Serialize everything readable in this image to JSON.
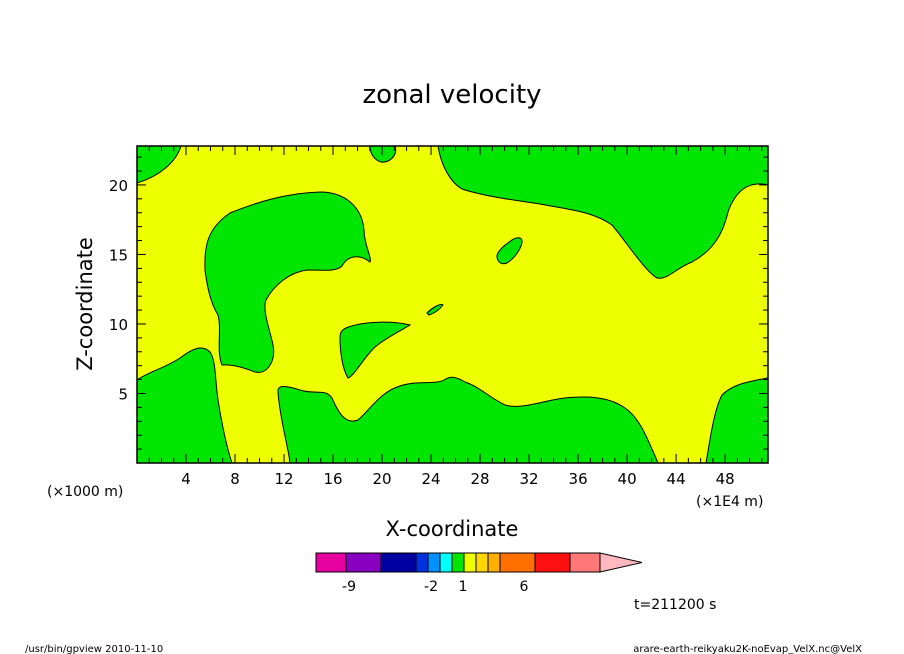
{
  "chart_data": {
    "type": "heatmap",
    "title": "zonal velocity",
    "xlabel": "X-coordinate",
    "ylabel": "Z-coordinate",
    "x_scale_label": "(×1000 m)",
    "x_scale_label_right": "(×1E4 m)",
    "xlim": [
      0,
      51.5
    ],
    "ylim": [
      0,
      22.8
    ],
    "x_ticks": [
      4,
      8,
      12,
      16,
      20,
      24,
      28,
      32,
      36,
      40,
      44,
      48
    ],
    "y_ticks": [
      5,
      10,
      15,
      20
    ],
    "fields": [
      {
        "label": "shaded level",
        "color": "#eeff00",
        "description": "contour level shown as background field"
      },
      {
        "label": "shaded level",
        "color": "#00e600"
      }
    ],
    "colorbar": {
      "ticks": [
        "-9",
        "-2",
        "1",
        "6"
      ],
      "colors": [
        "#e600a0",
        "#8800c0",
        "#0000a0",
        "#0030e0",
        "#0090ff",
        "#00ffff",
        "#00e600",
        "#eeff00",
        "#ffd600",
        "#ffb000",
        "#ff7000",
        "#ff1010",
        "#ff7878",
        "#ffb8c0"
      ]
    },
    "time_label": "t=211200 s"
  },
  "footer": {
    "left": "/usr/bin/gpview   2010-11-10",
    "right": "arare-earth-reikyaku2K-noEvap_VelX.nc@VelX"
  }
}
